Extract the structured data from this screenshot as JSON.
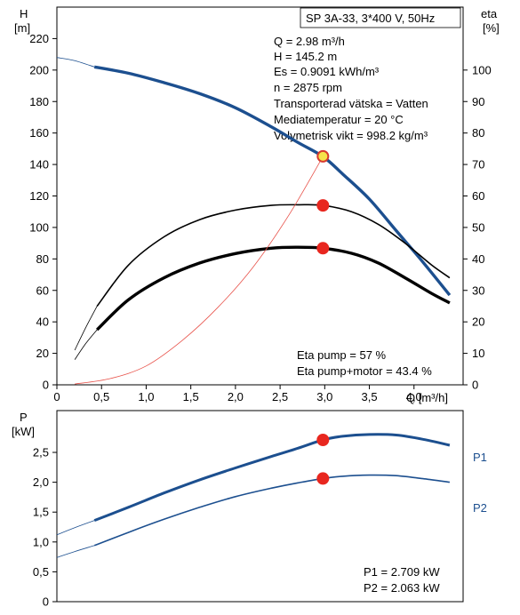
{
  "chart_data": [
    {
      "type": "line",
      "title": "SP 3A-33, 3*400 V, 50Hz",
      "xlabel": "Q [m³/h]",
      "ylabel_left": [
        "H",
        "[m]"
      ],
      "ylabel_right": [
        "eta",
        "[%]"
      ],
      "xlim": [
        0,
        4.55
      ],
      "ylim_left": [
        0,
        240
      ],
      "ylim_right": [
        0,
        120
      ],
      "x_ticks": [
        0,
        0.5,
        1.0,
        1.5,
        2.0,
        2.5,
        3.0,
        3.5,
        4.0
      ],
      "x_tick_labels": [
        "0",
        "0,5",
        "1,0",
        "1,5",
        "2,0",
        "2,5",
        "3,0",
        "3,5",
        "4,0"
      ],
      "y_left_ticks": [
        0,
        20,
        40,
        60,
        80,
        100,
        120,
        140,
        160,
        180,
        200,
        220
      ],
      "y_left_tick_labels": [
        "0",
        "20",
        "40",
        "60",
        "80",
        "100",
        "120",
        "140",
        "160",
        "180",
        "200",
        "220"
      ],
      "y_right_ticks": [
        0,
        10,
        20,
        30,
        40,
        50,
        60,
        70,
        80,
        90,
        100
      ],
      "y_right_tick_labels": [
        "0",
        "10",
        "20",
        "30",
        "40",
        "50",
        "60",
        "70",
        "80",
        "90",
        "100"
      ],
      "grid": false,
      "info_lines": [
        "Q = 2.98 m³/h",
        "H = 145.2 m",
        "Es = 0.9091 kWh/m³",
        "n = 2875 rpm",
        "Transporterad vätska = Vatten",
        "Mediatemperatur = 20 °C",
        "Volymetrisk vikt = 998.2 kg/m³"
      ],
      "eta_lines": [
        "Eta pump = 57 %",
        "Eta pump+motor = 43.4 %"
      ],
      "series": [
        {
          "key": "H",
          "axis": "left",
          "color": "#1c4f8f",
          "width": 3.4,
          "x": [
            0.42,
            0.8,
            1.2,
            1.6,
            2.0,
            2.4,
            2.7,
            2.98,
            3.2,
            3.5,
            3.8,
            4.1,
            4.4
          ],
          "values": [
            202,
            198,
            192,
            185,
            176,
            164,
            154,
            145,
            134,
            118,
            98,
            78,
            57
          ]
        },
        {
          "key": "H-extension",
          "axis": "left",
          "color": "#1c4f8f",
          "width": 0.8,
          "x": [
            0.0,
            0.2,
            0.42
          ],
          "values": [
            208,
            206,
            202
          ]
        },
        {
          "key": "eta-pump",
          "axis": "right",
          "color": "#000000",
          "width": 1.6,
          "x": [
            0.45,
            0.8,
            1.2,
            1.6,
            2.0,
            2.4,
            2.7,
            2.98,
            3.3,
            3.6,
            3.9,
            4.2,
            4.4
          ],
          "values": [
            25,
            38,
            47,
            52.5,
            55.5,
            57,
            57.2,
            57,
            55,
            51,
            45,
            38,
            34
          ]
        },
        {
          "key": "eta-pump-ext",
          "axis": "right",
          "color": "#000000",
          "width": 0.8,
          "x": [
            0.2,
            0.32,
            0.45
          ],
          "values": [
            11,
            18,
            25
          ]
        },
        {
          "key": "eta-pump-motor",
          "axis": "right",
          "color": "#000000",
          "width": 3.4,
          "x": [
            0.45,
            0.8,
            1.2,
            1.6,
            2.0,
            2.4,
            2.7,
            2.98,
            3.3,
            3.6,
            3.9,
            4.2,
            4.4
          ],
          "values": [
            17.5,
            27,
            34,
            38.7,
            41.7,
            43.4,
            43.7,
            43.4,
            41.8,
            38.7,
            34,
            29,
            26
          ]
        },
        {
          "key": "eta-pump-motor-ext",
          "axis": "right",
          "color": "#000000",
          "width": 0.8,
          "x": [
            0.2,
            0.32,
            0.45
          ],
          "values": [
            8,
            13,
            17.5
          ]
        },
        {
          "key": "system-curve",
          "axis": "left",
          "color": "#e8524a",
          "width": 0.8,
          "x": [
            0.2,
            0.6,
            1.0,
            1.4,
            1.8,
            2.2,
            2.6,
            2.98
          ],
          "values": [
            0.5,
            4,
            12,
            28,
            49,
            75,
            108,
            145
          ]
        }
      ],
      "points": [
        {
          "key": "duty-point",
          "axis": "left",
          "x": 2.98,
          "y": 145.2,
          "fill": "#f6e24a",
          "stroke": "#d83a2e"
        },
        {
          "key": "eta-pump-point",
          "axis": "right",
          "x": 2.98,
          "y": 57,
          "fill": "#e8271f",
          "stroke": "#e8271f"
        },
        {
          "key": "eta-pump-motor-point",
          "axis": "right",
          "x": 2.98,
          "y": 43.4,
          "fill": "#e8271f",
          "stroke": "#e8271f"
        }
      ]
    },
    {
      "type": "line",
      "ylabel": [
        "P",
        "[kW]"
      ],
      "xlim": [
        0,
        4.55
      ],
      "ylim": [
        0,
        3.2
      ],
      "y_ticks": [
        0,
        0.5,
        1.0,
        1.5,
        2.0,
        2.5
      ],
      "y_tick_labels": [
        "0",
        "0,5",
        "1,0",
        "1,5",
        "2,0",
        "2,5"
      ],
      "grid": false,
      "values_lines": [
        "P1 = 2.709 kW",
        "P2 = 2.063 kW"
      ],
      "series": [
        {
          "key": "P1",
          "name": "P1",
          "color": "#1c4f8f",
          "width": 3.0,
          "x": [
            0.42,
            0.8,
            1.2,
            1.6,
            2.0,
            2.4,
            2.7,
            2.98,
            3.2,
            3.5,
            3.8,
            4.1,
            4.4
          ],
          "values": [
            1.36,
            1.58,
            1.82,
            2.04,
            2.24,
            2.43,
            2.57,
            2.709,
            2.77,
            2.8,
            2.79,
            2.72,
            2.62
          ]
        },
        {
          "key": "P1-ext",
          "color": "#1c4f8f",
          "width": 0.8,
          "x": [
            0.0,
            0.2,
            0.42
          ],
          "values": [
            1.12,
            1.24,
            1.36
          ]
        },
        {
          "key": "P2",
          "name": "P2",
          "color": "#1c4f8f",
          "width": 1.6,
          "x": [
            0.42,
            0.8,
            1.2,
            1.6,
            2.0,
            2.4,
            2.7,
            2.98,
            3.2,
            3.5,
            3.8,
            4.1,
            4.4
          ],
          "values": [
            0.94,
            1.16,
            1.38,
            1.58,
            1.76,
            1.9,
            1.99,
            2.063,
            2.1,
            2.12,
            2.11,
            2.06,
            2.0
          ]
        },
        {
          "key": "P2-ext",
          "color": "#1c4f8f",
          "width": 0.8,
          "x": [
            0.0,
            0.2,
            0.42
          ],
          "values": [
            0.74,
            0.84,
            0.94
          ]
        }
      ],
      "points": [
        {
          "key": "p1-point",
          "x": 2.98,
          "y": 2.709,
          "fill": "#e8271f",
          "stroke": "#e8271f"
        },
        {
          "key": "p2-point",
          "x": 2.98,
          "y": 2.063,
          "fill": "#e8271f",
          "stroke": "#e8271f"
        }
      ]
    }
  ]
}
